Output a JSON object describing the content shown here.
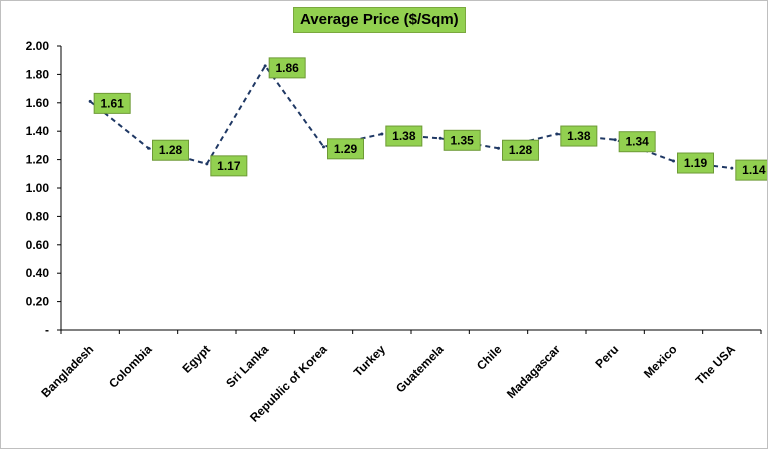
{
  "chart_data": {
    "type": "line",
    "title": "Average Price ($/Sqm)",
    "categories": [
      "Bangladesh",
      "Colombia",
      "Egypt",
      "Sri Lanka",
      "Republic of Korea",
      "Turkey",
      "Guatemela",
      "Chile",
      "Madagascar",
      "Peru",
      "Mexico",
      "The USA"
    ],
    "series": [
      {
        "values": [
          1.61,
          1.28,
          1.17,
          1.86,
          1.29,
          1.38,
          1.35,
          1.28,
          1.38,
          1.34,
          1.19,
          1.14
        ]
      }
    ],
    "data_labels": [
      "1.61",
      "1.28",
      "1.17",
      "1.86",
      "1.29",
      "1.38",
      "1.35",
      "1.28",
      "1.38",
      "1.34",
      "1.19",
      "1.14"
    ],
    "y_tick_labels": [
      "-",
      "0.20",
      "0.40",
      "0.60",
      "0.80",
      "1.00",
      "1.20",
      "1.40",
      "1.60",
      "1.80",
      "2.00"
    ],
    "ylim": [
      0,
      2
    ],
    "grid": false,
    "legend": "none",
    "line_style": "dashed",
    "colors": {
      "line": "#1f3864",
      "label_fill": "#92d050",
      "label_border": "#6d9a36",
      "axis": "#000000"
    }
  }
}
